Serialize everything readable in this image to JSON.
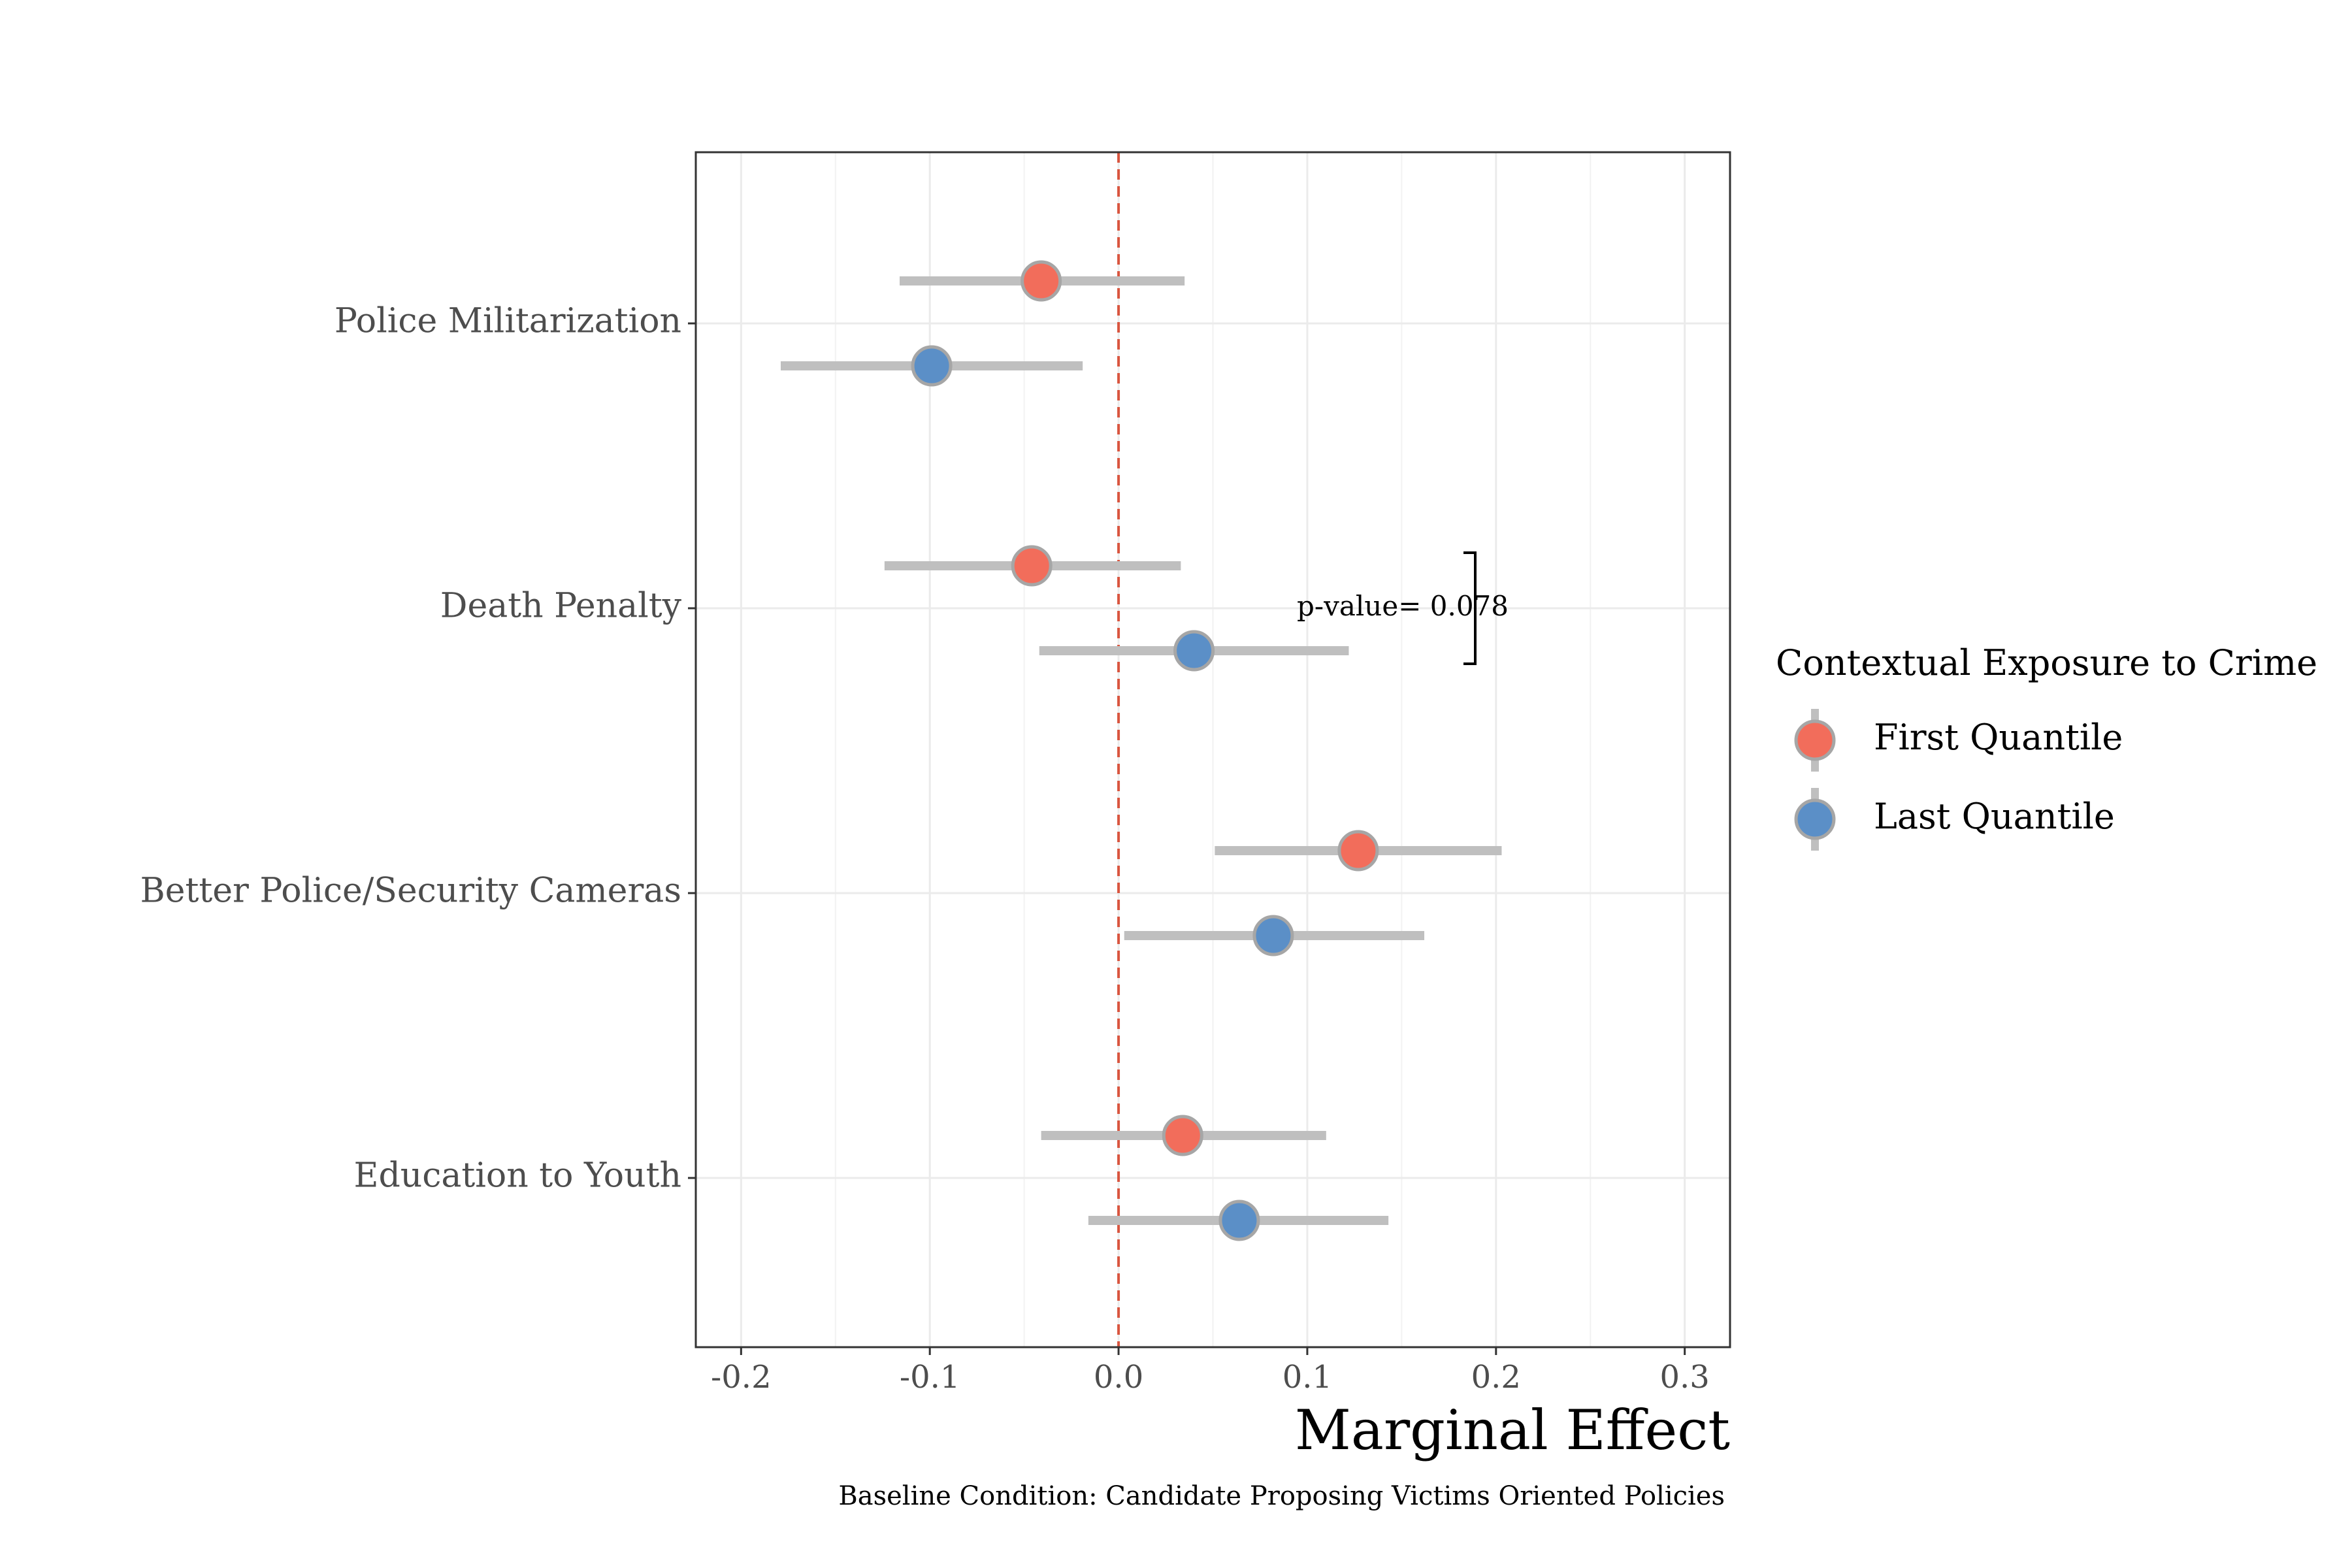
{
  "chart_data": {
    "type": "scatter",
    "orientation": "horizontal-dot-whisker",
    "categories": [
      "Police Militarization",
      "Death Penalty",
      "Better Police/Security Cameras",
      "Education to Youth"
    ],
    "series": [
      {
        "name": "First Quantile",
        "color": "#f26d5b",
        "values": [
          -0.041,
          -0.046,
          0.127,
          0.034
        ],
        "lower": [
          -0.116,
          -0.124,
          0.051,
          -0.041
        ],
        "upper": [
          0.035,
          0.033,
          0.203,
          0.11
        ]
      },
      {
        "name": "Last Quantile",
        "color": "#5b8fc7",
        "values": [
          -0.099,
          0.04,
          0.082,
          0.064
        ],
        "lower": [
          -0.179,
          -0.042,
          0.003,
          -0.016
        ],
        "upper": [
          -0.019,
          0.122,
          0.162,
          0.143
        ]
      }
    ],
    "xlim": [
      -0.224,
      0.324
    ],
    "xticks": [
      "-0.2",
      "-0.1",
      "0.0",
      "0.1",
      "0.2",
      "0.3"
    ],
    "xtick_values": [
      -0.2,
      -0.1,
      0.0,
      0.1,
      0.2,
      0.3
    ],
    "reference_line": 0,
    "xlabel": "Marginal Effect",
    "caption": "Baseline Condition: Candidate Proposing Victims Oriented Policies",
    "legend": {
      "title": "Contextual Exposure to Crime",
      "position": "right"
    },
    "annotation": {
      "category": "Death Penalty",
      "text": "p-value= 0.078"
    },
    "grid": true
  }
}
